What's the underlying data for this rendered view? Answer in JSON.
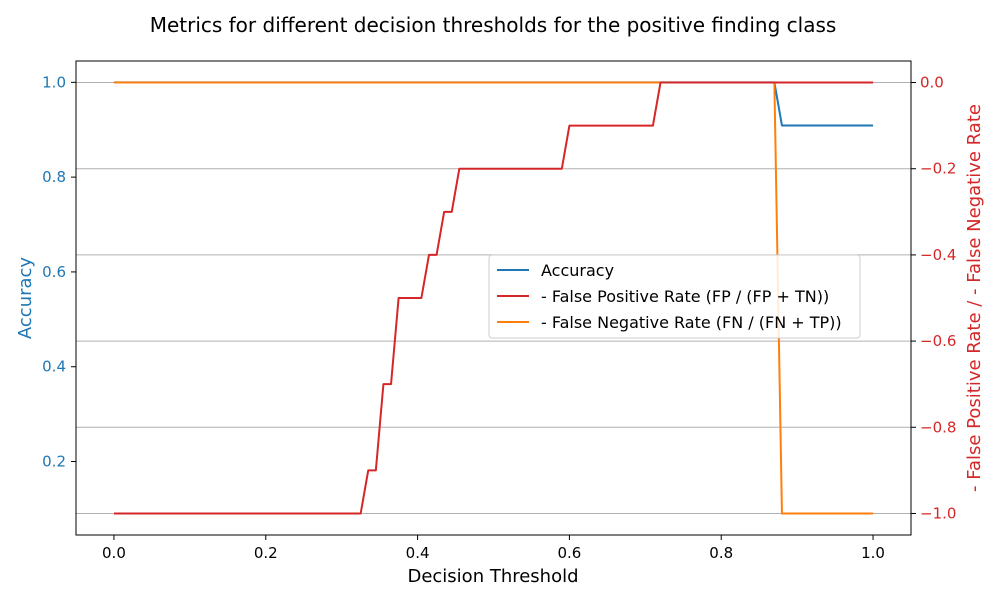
{
  "chart_data": {
    "type": "line",
    "title": "Metrics for different decision thresholds for the positive finding class",
    "xlabel": "Decision Threshold",
    "ylabel_left": "Accuracy",
    "ylabel_right": "- False Positive Rate / - False Negative Rate",
    "xlim": [
      -0.05,
      1.05
    ],
    "ylim_left": [
      0.045,
      1.045
    ],
    "ylim_right": [
      -1.05,
      0.05
    ],
    "xticks": [
      0.0,
      0.2,
      0.4,
      0.6,
      0.8,
      1.0
    ],
    "xtick_labels": [
      "0.0",
      "0.2",
      "0.4",
      "0.6",
      "0.8",
      "1.0"
    ],
    "yticks_left": [
      0.2,
      0.4,
      0.6,
      0.8,
      1.0
    ],
    "ytick_labels_left": [
      "0.2",
      "0.4",
      "0.6",
      "0.8",
      "1.0"
    ],
    "yticks_right": [
      -1.0,
      -0.8,
      -0.6,
      -0.4,
      -0.2,
      0.0
    ],
    "ytick_labels_right": [
      "−1.0",
      "−0.8",
      "−0.6",
      "−0.4",
      "−0.2",
      "0.0"
    ],
    "grid": "horizontal on right axis",
    "legend_position": "center-right",
    "colors": {
      "accuracy": "#1f77b4",
      "fpr": "#d62728",
      "fnr": "#ff7f0e",
      "left_axis": "#1f77b4",
      "right_axis": "#d62728"
    },
    "series": [
      {
        "name": "Accuracy",
        "axis": "left",
        "x": [
          0.0,
          0.87,
          0.88,
          1.0
        ],
        "y": [
          1.0,
          1.0,
          0.909,
          0.909
        ]
      },
      {
        "name": "- False Positive Rate (FP / (FP + TN))",
        "axis": "right",
        "x": [
          0.0,
          0.325,
          0.335,
          0.345,
          0.355,
          0.365,
          0.375,
          0.405,
          0.415,
          0.425,
          0.435,
          0.445,
          0.455,
          0.59,
          0.6,
          0.71,
          0.72,
          1.0
        ],
        "y": [
          -1.0,
          -1.0,
          -0.9,
          -0.9,
          -0.7,
          -0.7,
          -0.5,
          -0.5,
          -0.4,
          -0.4,
          -0.3,
          -0.3,
          -0.2,
          -0.2,
          -0.1,
          -0.1,
          0.0,
          0.0
        ]
      },
      {
        "name": "- False Negative Rate (FN / (FN + TP))",
        "axis": "right",
        "x": [
          0.0,
          0.87,
          0.88,
          1.0
        ],
        "y": [
          0.0,
          0.0,
          -1.0,
          -1.0
        ]
      }
    ]
  }
}
